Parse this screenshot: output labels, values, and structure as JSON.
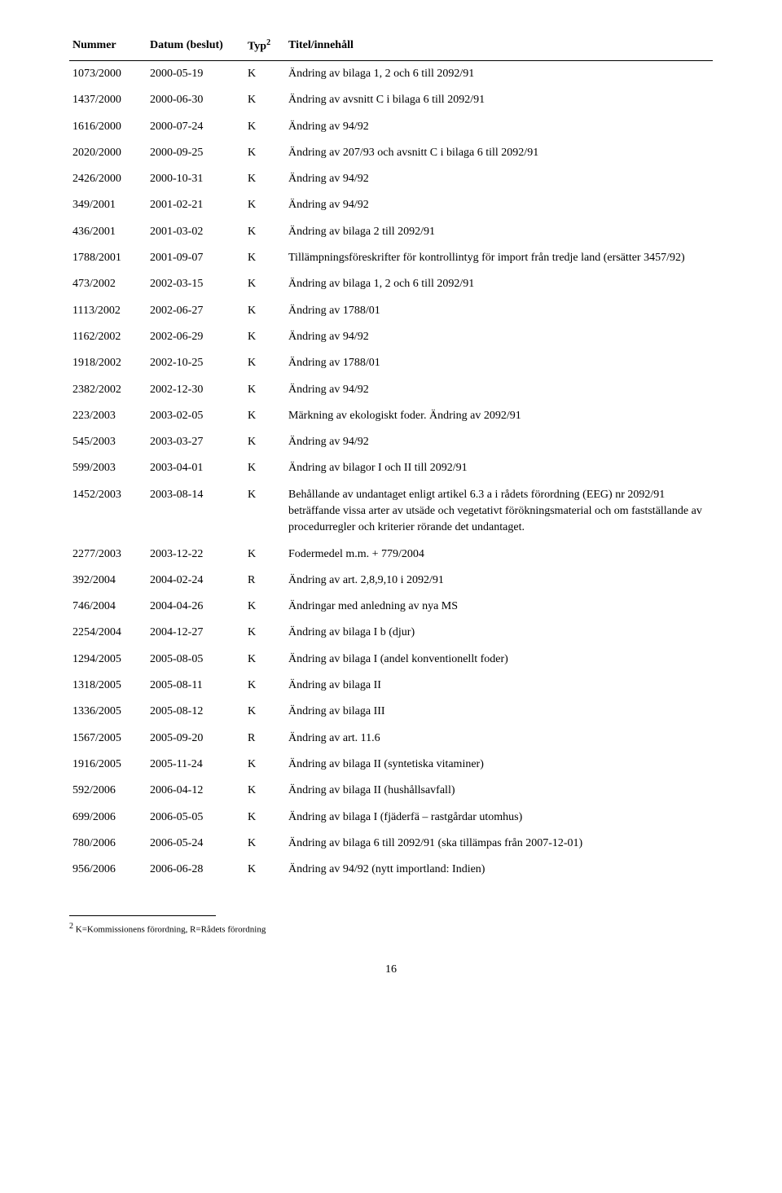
{
  "headers": {
    "nummer": "Nummer",
    "datum": "Datum (beslut)",
    "typ": "Typ",
    "typ_super": "2",
    "titel": "Titel/innehåll"
  },
  "rows": [
    {
      "n": "1073/2000",
      "d": "2000-05-19",
      "t": "K",
      "ti": "Ändring av bilaga 1, 2 och 6 till 2092/91"
    },
    {
      "n": "1437/2000",
      "d": "2000-06-30",
      "t": "K",
      "ti": "Ändring av avsnitt C i bilaga 6 till 2092/91"
    },
    {
      "n": "1616/2000",
      "d": "2000-07-24",
      "t": "K",
      "ti": "Ändring av 94/92"
    },
    {
      "n": "2020/2000",
      "d": "2000-09-25",
      "t": "K",
      "ti": "Ändring av 207/93 och avsnitt C i bilaga 6 till 2092/91"
    },
    {
      "n": "2426/2000",
      "d": "2000-10-31",
      "t": "K",
      "ti": "Ändring av 94/92"
    },
    {
      "n": "349/2001",
      "d": "2001-02-21",
      "t": "K",
      "ti": "Ändring av 94/92"
    },
    {
      "n": "436/2001",
      "d": "2001-03-02",
      "t": "K",
      "ti": "Ändring av bilaga 2 till 2092/91"
    },
    {
      "n": "1788/2001",
      "d": "2001-09-07",
      "t": "K",
      "ti": "Tillämpningsföreskrifter för kontrollintyg för import från tredje land (ersätter 3457/92)"
    },
    {
      "n": "473/2002",
      "d": "2002-03-15",
      "t": "K",
      "ti": "Ändring av bilaga 1, 2 och 6 till 2092/91"
    },
    {
      "n": "1113/2002",
      "d": "2002-06-27",
      "t": "K",
      "ti": "Ändring av 1788/01"
    },
    {
      "n": "1162/2002",
      "d": "2002-06-29",
      "t": "K",
      "ti": "Ändring av 94/92"
    },
    {
      "n": "1918/2002",
      "d": "2002-10-25",
      "t": "K",
      "ti": "Ändring av 1788/01"
    },
    {
      "n": "2382/2002",
      "d": "2002-12-30",
      "t": "K",
      "ti": "Ändring av 94/92"
    },
    {
      "n": "223/2003",
      "d": "2003-02-05",
      "t": "K",
      "ti": "Märkning av ekologiskt foder. Ändring av 2092/91"
    },
    {
      "n": "545/2003",
      "d": "2003-03-27",
      "t": "K",
      "ti": "Ändring av 94/92"
    },
    {
      "n": "599/2003",
      "d": "2003-04-01",
      "t": "K",
      "ti": "Ändring av bilagor I och II till 2092/91"
    },
    {
      "n": "1452/2003",
      "d": "2003-08-14",
      "t": "K",
      "ti": "Behållande av undantaget enligt artikel 6.3 a i rådets förordning (EEG) nr 2092/91 beträffande vissa arter av utsäde och vegetativt förökningsmaterial och om fastställande av procedurregler och kriterier rörande det undantaget."
    },
    {
      "n": "2277/2003",
      "d": "2003-12-22",
      "t": "K",
      "ti": "Fodermedel m.m. + 779/2004"
    },
    {
      "n": "392/2004",
      "d": "2004-02-24",
      "t": "R",
      "ti": "Ändring av art. 2,8,9,10 i 2092/91"
    },
    {
      "n": "746/2004",
      "d": "2004-04-26",
      "t": "K",
      "ti": "Ändringar med anledning av nya MS"
    },
    {
      "n": "2254/2004",
      "d": "2004-12-27",
      "t": "K",
      "ti": "Ändring av bilaga I b (djur)"
    },
    {
      "n": "1294/2005",
      "d": "2005-08-05",
      "t": "K",
      "ti": "Ändring av bilaga I (andel konventionellt foder)"
    },
    {
      "n": "1318/2005",
      "d": "2005-08-11",
      "t": "K",
      "ti": "Ändring av bilaga II"
    },
    {
      "n": "1336/2005",
      "d": "2005-08-12",
      "t": "K",
      "ti": "Ändring av bilaga III"
    },
    {
      "n": "1567/2005",
      "d": "2005-09-20",
      "t": "R",
      "ti": "Ändring av art. 11.6"
    },
    {
      "n": "1916/2005",
      "d": "2005-11-24",
      "t": "K",
      "ti": "Ändring av bilaga II (syntetiska vitaminer)"
    },
    {
      "n": "592/2006",
      "d": "2006-04-12",
      "t": "K",
      "ti": "Ändring av bilaga II (hushållsavfall)"
    },
    {
      "n": "699/2006",
      "d": "2006-05-05",
      "t": "K",
      "ti": "Ändring av bilaga I (fjäderfä – rastgårdar utomhus)"
    },
    {
      "n": "780/2006",
      "d": "2006-05-24",
      "t": "K",
      "ti": "Ändring av bilaga 6 till 2092/91 (ska tillämpas från 2007-12-01)"
    },
    {
      "n": "956/2006",
      "d": "2006-06-28",
      "t": "K",
      "ti": "Ändring av 94/92 (nytt importland: Indien)"
    }
  ],
  "footnote": {
    "marker": "2",
    "text": " K=Kommissionens förordning, R=Rådets förordning"
  },
  "page_number": "16"
}
